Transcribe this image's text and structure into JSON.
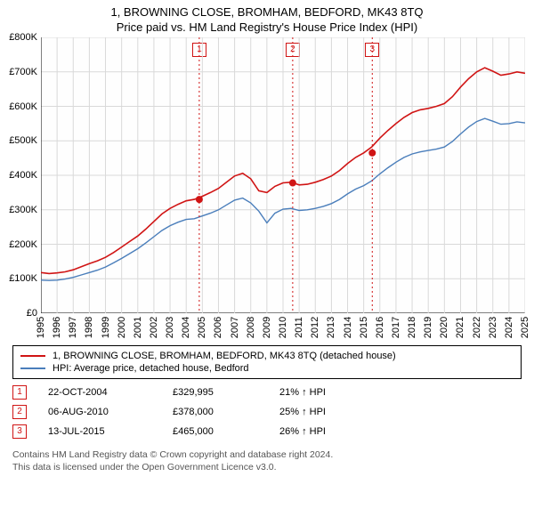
{
  "title": "1, BROWNING CLOSE, BROMHAM, BEDFORD, MK43 8TQ",
  "subtitle": "Price paid vs. HM Land Registry's House Price Index (HPI)",
  "chart": {
    "type": "line",
    "background_color": "#ffffff",
    "grid_color": "#d9d9d9",
    "axis_color": "#000000",
    "ylim": [
      0,
      800000
    ],
    "ytick_step": 100000,
    "yticks": [
      "£0",
      "£100K",
      "£200K",
      "£300K",
      "£400K",
      "£500K",
      "£600K",
      "£700K",
      "£800K"
    ],
    "xlim": [
      1995,
      2025
    ],
    "xticks": [
      1995,
      1996,
      1997,
      1998,
      1999,
      2000,
      2001,
      2002,
      2003,
      2004,
      2005,
      2006,
      2007,
      2008,
      2009,
      2010,
      2011,
      2012,
      2013,
      2014,
      2015,
      2016,
      2017,
      2018,
      2019,
      2020,
      2021,
      2022,
      2023,
      2024,
      2025
    ],
    "series": [
      {
        "name": "1, BROWNING CLOSE, BROMHAM, BEDFORD, MK43 8TQ (detached house)",
        "color": "#d01414",
        "line_width": 1.6,
        "points": [
          [
            1995,
            118000
          ],
          [
            1995.5,
            115000
          ],
          [
            1996,
            117000
          ],
          [
            1996.5,
            120000
          ],
          [
            1997,
            126000
          ],
          [
            1997.5,
            135000
          ],
          [
            1998,
            144000
          ],
          [
            1998.5,
            152000
          ],
          [
            1999,
            162000
          ],
          [
            1999.5,
            176000
          ],
          [
            2000,
            192000
          ],
          [
            2000.5,
            208000
          ],
          [
            2001,
            224000
          ],
          [
            2001.5,
            244000
          ],
          [
            2002,
            266000
          ],
          [
            2002.5,
            288000
          ],
          [
            2003,
            304000
          ],
          [
            2003.5,
            316000
          ],
          [
            2004,
            326000
          ],
          [
            2004.5,
            330000
          ],
          [
            2005,
            339000
          ],
          [
            2005.5,
            350000
          ],
          [
            2006,
            362000
          ],
          [
            2006.5,
            380000
          ],
          [
            2007,
            398000
          ],
          [
            2007.5,
            406000
          ],
          [
            2008,
            390000
          ],
          [
            2008.5,
            355000
          ],
          [
            2009,
            350000
          ],
          [
            2009.5,
            368000
          ],
          [
            2010,
            378000
          ],
          [
            2010.5,
            380000
          ],
          [
            2011,
            372000
          ],
          [
            2011.5,
            374000
          ],
          [
            2012,
            380000
          ],
          [
            2012.5,
            388000
          ],
          [
            2013,
            398000
          ],
          [
            2013.5,
            414000
          ],
          [
            2014,
            434000
          ],
          [
            2014.5,
            452000
          ],
          [
            2015,
            465000
          ],
          [
            2015.5,
            482000
          ],
          [
            2016,
            508000
          ],
          [
            2016.5,
            530000
          ],
          [
            2017,
            550000
          ],
          [
            2017.5,
            568000
          ],
          [
            2018,
            582000
          ],
          [
            2018.5,
            590000
          ],
          [
            2019,
            594000
          ],
          [
            2019.5,
            600000
          ],
          [
            2020,
            608000
          ],
          [
            2020.5,
            628000
          ],
          [
            2021,
            656000
          ],
          [
            2021.5,
            680000
          ],
          [
            2022,
            700000
          ],
          [
            2022.5,
            712000
          ],
          [
            2023,
            702000
          ],
          [
            2023.5,
            690000
          ],
          [
            2024,
            694000
          ],
          [
            2024.5,
            700000
          ],
          [
            2025,
            696000
          ]
        ]
      },
      {
        "name": "HPI: Average price, detached house, Bedford",
        "color": "#4a7ebb",
        "line_width": 1.4,
        "points": [
          [
            1995,
            96000
          ],
          [
            1995.5,
            95000
          ],
          [
            1996,
            96000
          ],
          [
            1996.5,
            99000
          ],
          [
            1997,
            104000
          ],
          [
            1997.5,
            111000
          ],
          [
            1998,
            118000
          ],
          [
            1998.5,
            125000
          ],
          [
            1999,
            134000
          ],
          [
            1999.5,
            146000
          ],
          [
            2000,
            159000
          ],
          [
            2000.5,
            173000
          ],
          [
            2001,
            187000
          ],
          [
            2001.5,
            204000
          ],
          [
            2002,
            222000
          ],
          [
            2002.5,
            240000
          ],
          [
            2003,
            254000
          ],
          [
            2003.5,
            264000
          ],
          [
            2004,
            272000
          ],
          [
            2004.5,
            274000
          ],
          [
            2005,
            282000
          ],
          [
            2005.5,
            290000
          ],
          [
            2006,
            300000
          ],
          [
            2006.5,
            314000
          ],
          [
            2007,
            328000
          ],
          [
            2007.5,
            334000
          ],
          [
            2008,
            320000
          ],
          [
            2008.5,
            296000
          ],
          [
            2009,
            262000
          ],
          [
            2009.5,
            290000
          ],
          [
            2010,
            302000
          ],
          [
            2010.5,
            304000
          ],
          [
            2011,
            298000
          ],
          [
            2011.5,
            300000
          ],
          [
            2012,
            304000
          ],
          [
            2012.5,
            310000
          ],
          [
            2013,
            318000
          ],
          [
            2013.5,
            330000
          ],
          [
            2014,
            346000
          ],
          [
            2014.5,
            360000
          ],
          [
            2015,
            370000
          ],
          [
            2015.5,
            384000
          ],
          [
            2016,
            404000
          ],
          [
            2016.5,
            422000
          ],
          [
            2017,
            438000
          ],
          [
            2017.5,
            452000
          ],
          [
            2018,
            462000
          ],
          [
            2018.5,
            468000
          ],
          [
            2019,
            472000
          ],
          [
            2019.5,
            476000
          ],
          [
            2020,
            482000
          ],
          [
            2020.5,
            498000
          ],
          [
            2021,
            520000
          ],
          [
            2021.5,
            540000
          ],
          [
            2022,
            556000
          ],
          [
            2022.5,
            565000
          ],
          [
            2023,
            557000
          ],
          [
            2023.5,
            548000
          ],
          [
            2024,
            550000
          ],
          [
            2024.5,
            555000
          ],
          [
            2025,
            552000
          ]
        ]
      }
    ],
    "markers": [
      {
        "n": "1",
        "x": 2004.81,
        "y": 329995
      },
      {
        "n": "2",
        "x": 2010.6,
        "y": 378000
      },
      {
        "n": "3",
        "x": 2015.53,
        "y": 465000
      }
    ],
    "marker_color": "#d01414",
    "marker_line_style": "dotted",
    "label_fontsize": 11
  },
  "legend": [
    {
      "color": "#d01414",
      "label": "1, BROWNING CLOSE, BROMHAM, BEDFORD, MK43 8TQ (detached house)"
    },
    {
      "color": "#4a7ebb",
      "label": "HPI: Average price, detached house, Bedford"
    }
  ],
  "events": [
    {
      "n": "1",
      "date": "22-OCT-2004",
      "price": "£329,995",
      "diff": "21% ↑ HPI"
    },
    {
      "n": "2",
      "date": "06-AUG-2010",
      "price": "£378,000",
      "diff": "25% ↑ HPI"
    },
    {
      "n": "3",
      "date": "13-JUL-2015",
      "price": "£465,000",
      "diff": "26% ↑ HPI"
    }
  ],
  "footnote_line1": "Contains HM Land Registry data © Crown copyright and database right 2024.",
  "footnote_line2": "This data is licensed under the Open Government Licence v3.0."
}
